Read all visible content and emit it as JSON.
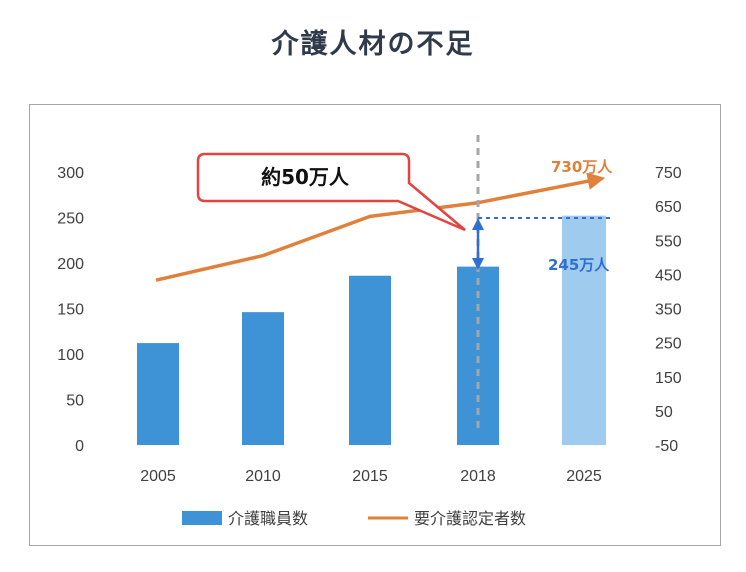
{
  "title": "介護人材の不足",
  "chart_data": {
    "type": "bar+line",
    "categories": [
      "2005",
      "2010",
      "2015",
      "2018",
      "2025"
    ],
    "series": [
      {
        "name": "介護職員数",
        "type": "bar",
        "axis": "left",
        "values": [
          112,
          146,
          186,
          196,
          252
        ],
        "projected_index": 4
      },
      {
        "name": "要介護認定者数",
        "type": "line",
        "axis": "right",
        "values": [
          433,
          505,
          620,
          660,
          730
        ]
      }
    ],
    "left_axis": {
      "ticks": [
        "0",
        "50",
        "100",
        "150",
        "200",
        "250",
        "300"
      ],
      "min": 0,
      "max": 300
    },
    "right_axis": {
      "ticks": [
        "-50",
        "50",
        "150",
        "250",
        "350",
        "450",
        "550",
        "650",
        "750"
      ],
      "min": -50,
      "max": 750
    },
    "annotations": {
      "callout": "約50万人",
      "line_end_label": "730万人",
      "gap_label": "245万人"
    },
    "legend": {
      "position": "bottom",
      "items": [
        "介護職員数",
        "要介護認定者数"
      ]
    },
    "colors": {
      "bar": "#3e93d6",
      "bar_projected": "#9fcbee",
      "line": "#e0803a",
      "callout_border": "#e5433f",
      "arrow_blue": "#2f6fd1",
      "grid_dash": "#a6a6a6"
    }
  }
}
